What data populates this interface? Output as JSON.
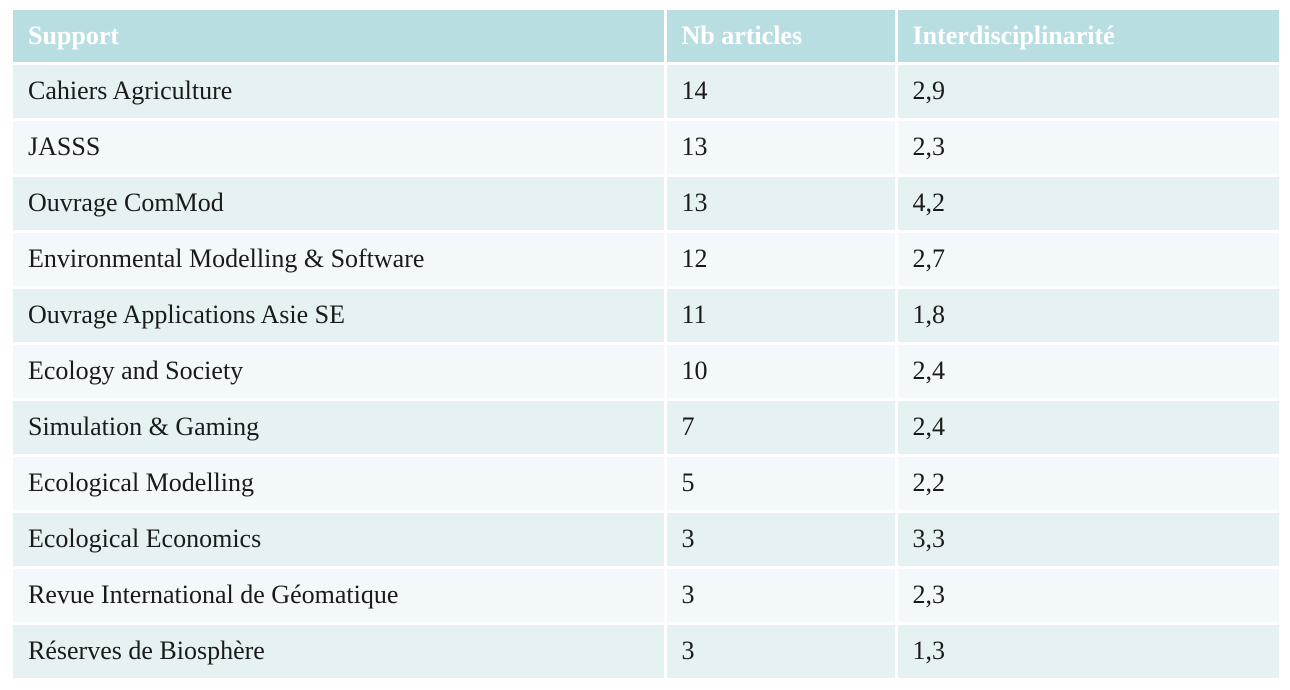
{
  "table": {
    "headers": [
      "Support",
      "Nb articles",
      "Interdisciplinarité"
    ],
    "rows": [
      [
        "Cahiers Agriculture",
        "14",
        "2,9"
      ],
      [
        "JASSS",
        "13",
        "2,3"
      ],
      [
        "Ouvrage ComMod",
        "13",
        "4,2"
      ],
      [
        "Environmental Modelling & Software",
        "12",
        "2,7"
      ],
      [
        "Ouvrage Applications Asie SE",
        "11",
        "1,8"
      ],
      [
        "Ecology and Society",
        "10",
        "2,4"
      ],
      [
        "Simulation & Gaming",
        "7",
        "2,4"
      ],
      [
        "Ecological Modelling",
        "5",
        "2,2"
      ],
      [
        "Ecological Economics",
        "3",
        "3,3"
      ],
      [
        "Revue International de Géomatique",
        "3",
        "2,3"
      ],
      [
        "Réserves de Biosphère",
        "3",
        "1,3"
      ]
    ]
  },
  "colors": {
    "header_bg": "#b9dee2",
    "header_text": "#ffffff",
    "row_odd": "#e6f1f3",
    "row_even": "#f3f8fa",
    "cell_text": "#1a1a1a"
  }
}
